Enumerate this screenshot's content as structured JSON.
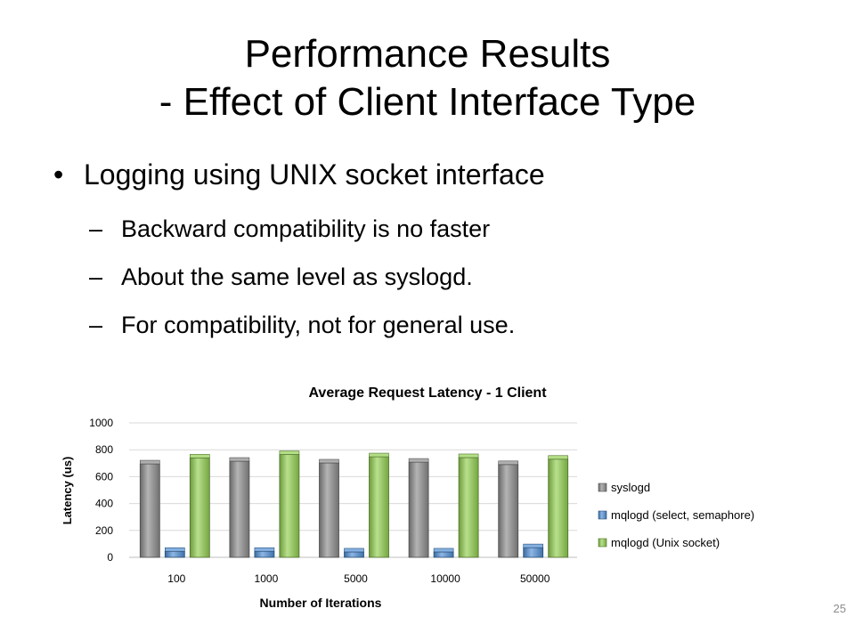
{
  "slide": {
    "title_line1": "Performance Results",
    "title_line2": "- Effect of Client Interface Type",
    "bullet_main": "Logging using UNIX socket interface",
    "bullet_marker": "•",
    "dash_marker": "–",
    "sub_bullets": [
      "Backward compatibility is no faster",
      "About the same level as syslogd.",
      "For compatibility, not for general use."
    ],
    "page_number": "25"
  },
  "colors": {
    "syslogd": "#8c8c8c",
    "mqlogd_select": "#4f8fd6",
    "mqlogd_unix": "#92d050",
    "gridline": "#d9d9d9",
    "text": "#000000"
  },
  "chart_data": {
    "type": "bar",
    "title": "Average Request Latency - 1 Client",
    "xlabel": "Number of Iterations",
    "ylabel": "Latency (us)",
    "categories": [
      "100",
      "1000",
      "5000",
      "10000",
      "50000"
    ],
    "series": [
      {
        "name": "syslogd",
        "values": [
          695,
          715,
          702,
          708,
          690
        ]
      },
      {
        "name": "mqlogd (select, semaphore)",
        "values": [
          45,
          45,
          40,
          40,
          72
        ]
      },
      {
        "name": "mqlogd (Unix socket)",
        "values": [
          740,
          765,
          748,
          742,
          730
        ]
      }
    ],
    "ylim": [
      0,
      1000
    ],
    "yticks": [
      0,
      200,
      400,
      600,
      800,
      1000
    ],
    "grid": true,
    "legend": "right",
    "style": "3d-bar"
  }
}
